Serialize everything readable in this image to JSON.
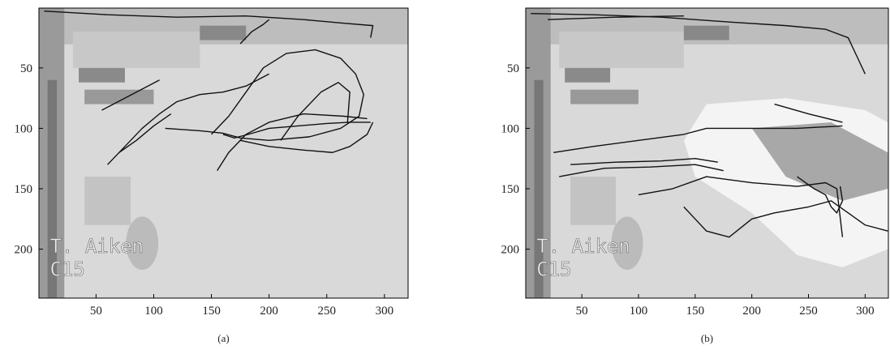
{
  "axes": {
    "xlim": [
      0.5,
      320.5
    ],
    "ylim": [
      0.5,
      240.5
    ],
    "xticks": [
      50,
      100,
      150,
      200,
      250,
      300
    ],
    "yticks": [
      50,
      100,
      150,
      200
    ]
  },
  "overlay_text": [
    "T. Aiken",
    "C15"
  ],
  "panels": [
    {
      "caption": "(a)"
    },
    {
      "caption": "(b)"
    }
  ]
}
